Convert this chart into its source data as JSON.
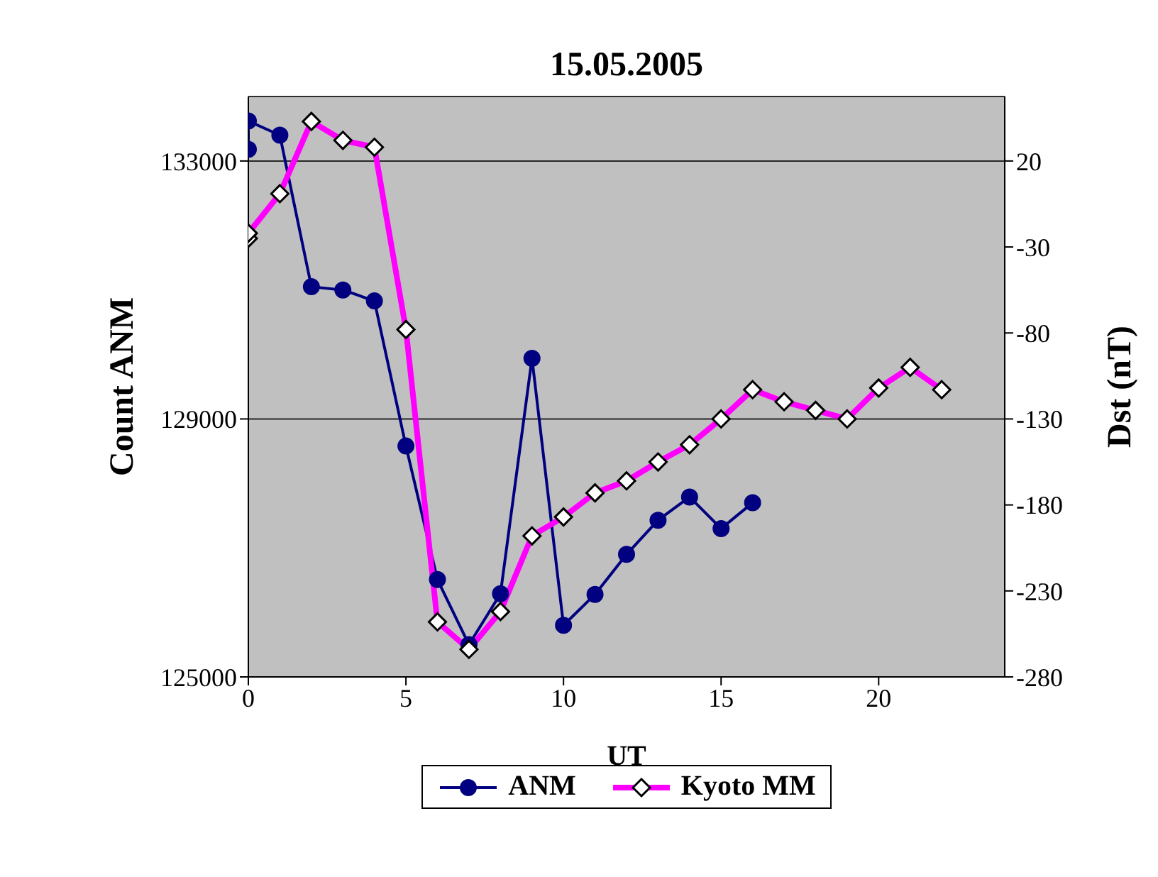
{
  "chart_data": {
    "type": "line",
    "title": "15.05.2005",
    "xlabel": "UT",
    "ylabel": "Count ANM",
    "y2label": "Dst (nT)",
    "xlim": [
      0,
      24
    ],
    "xticks": [
      0,
      5,
      10,
      15,
      20
    ],
    "ylim": [
      125000,
      134000
    ],
    "yticks": [
      125000,
      129000,
      133000
    ],
    "y2lim": [
      -280,
      57.5
    ],
    "y2ticks": [
      -280,
      -230,
      -180,
      -130,
      -80,
      -30,
      20
    ],
    "grid": "y",
    "legend": "bottom",
    "line_style": "solid",
    "series": [
      {
        "name": "ANM",
        "color": "#000080",
        "marker": "circle",
        "x": [
          0,
          0,
          1,
          2,
          3,
          4,
          5,
          6,
          7,
          8,
          9,
          10,
          11,
          12,
          13,
          14,
          15,
          16
        ],
        "values": [
          133180,
          133620,
          133400,
          131050,
          131000,
          130830,
          128580,
          126510,
          125500,
          126290,
          129940,
          125800,
          126280,
          126900,
          127430,
          127790,
          127300,
          127700
        ]
      },
      {
        "name": "Kyoto MM",
        "color": "#ff00ff",
        "marker": "diamond",
        "axis": "y2",
        "x": [
          0,
          0,
          1,
          2,
          3,
          4,
          5,
          6,
          7,
          8,
          9,
          10,
          11,
          12,
          13,
          14,
          15,
          16,
          17,
          18,
          19,
          20,
          21,
          22
        ],
        "values": [
          -25,
          -22,
          1,
          43,
          32,
          28,
          -78,
          -248,
          -264,
          -242,
          -198,
          -187,
          -173,
          -166,
          -155,
          -145,
          -130,
          -113,
          -120,
          -125,
          -130,
          -112,
          -100,
          -113
        ]
      }
    ]
  }
}
